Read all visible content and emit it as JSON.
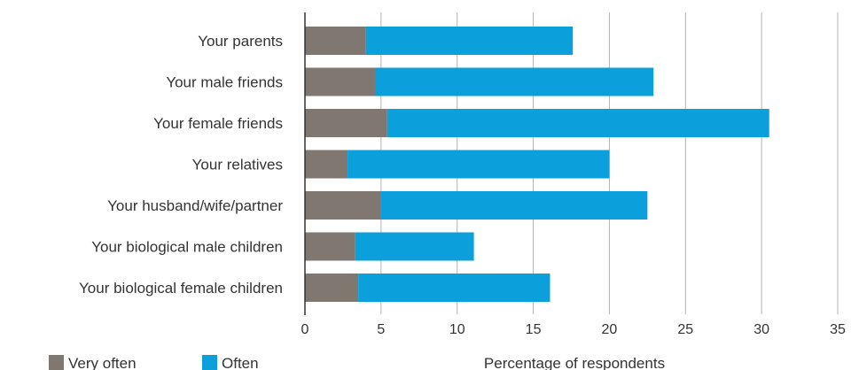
{
  "chart_data": {
    "type": "bar",
    "orientation": "horizontal",
    "stacked": true,
    "categories": [
      "Your parents",
      "Your male friends",
      "Your female friends",
      "Your relatives",
      "Your husband/wife/partner",
      "Your biological male children",
      "Your biological female children"
    ],
    "series": [
      {
        "name": "Very often",
        "color": "#7f7770",
        "values": [
          4.0,
          4.6,
          5.4,
          2.8,
          5.0,
          3.3,
          3.5
        ]
      },
      {
        "name": "Often",
        "color": "#0b9fdc",
        "values": [
          13.6,
          18.3,
          25.1,
          17.2,
          17.5,
          7.8,
          12.6
        ]
      }
    ],
    "xlabel": "Percentage of respondents",
    "ylabel": "",
    "xlim": [
      0,
      35
    ],
    "xticks": [
      "0",
      "5",
      "10",
      "15",
      "20",
      "25",
      "30",
      "35"
    ],
    "grid": "vertical",
    "legend_position": "bottom-left"
  }
}
